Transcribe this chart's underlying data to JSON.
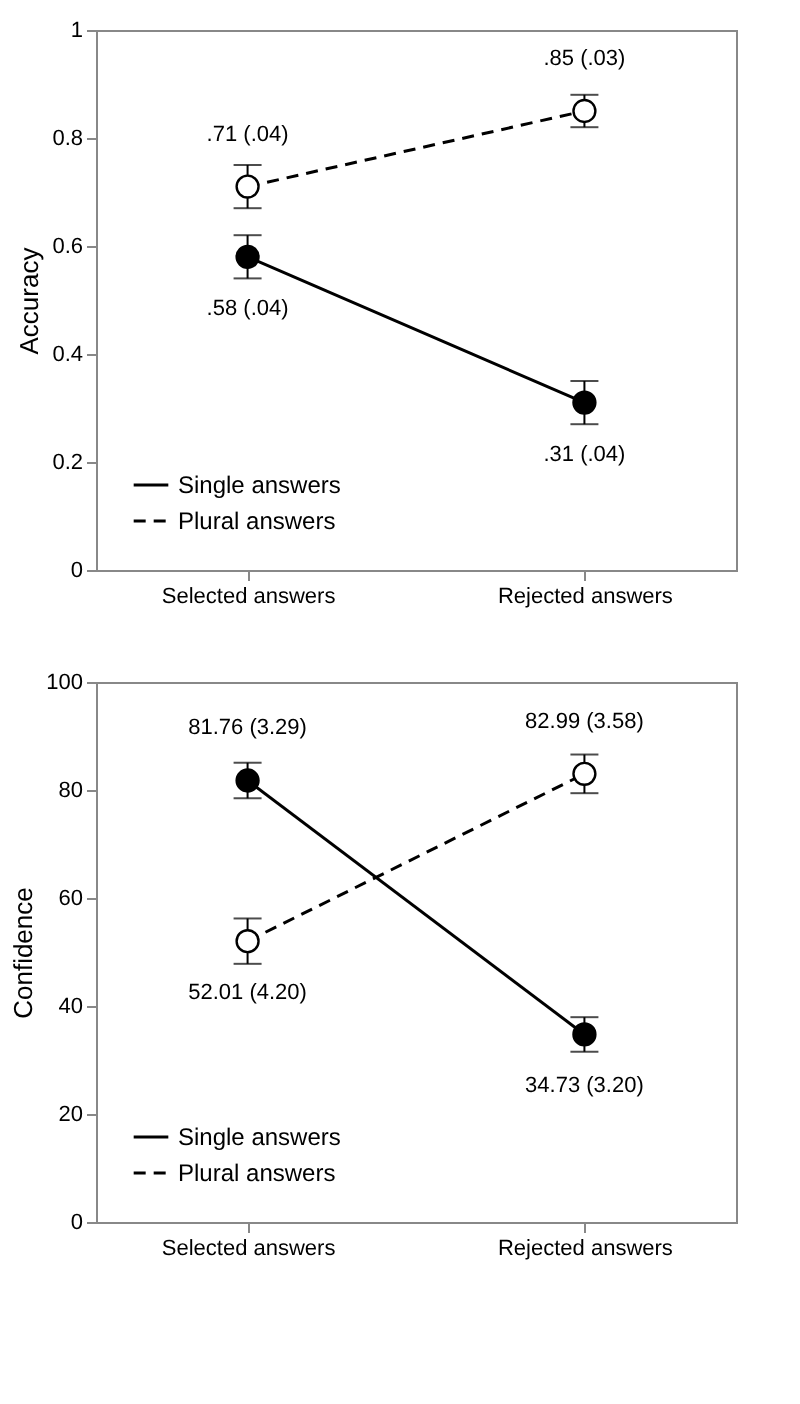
{
  "chart_data": [
    {
      "type": "line",
      "ylabel": "Accuracy",
      "categories": [
        "Selected answers",
        "Rejected answers"
      ],
      "series": [
        {
          "name": "Single answers",
          "color": "#000000",
          "line_style": "solid",
          "values": [
            0.58,
            0.31
          ],
          "errors": [
            0.04,
            0.04
          ],
          "value_labels": [
            ".58 (.04)",
            ".31 (.04)"
          ]
        },
        {
          "name": "Plural answers",
          "color": "#000000",
          "line_style": "dashed",
          "values": [
            0.71,
            0.85
          ],
          "errors": [
            0.04,
            0.03
          ],
          "value_labels": [
            ".71 (.04)",
            ".85 (.03)"
          ]
        }
      ],
      "ylim": [
        0,
        1
      ],
      "yticks": [
        0,
        0.2,
        0.4,
        0.6,
        0.8,
        1
      ],
      "grid": false,
      "legend": "bottom left",
      "marker": "circle"
    },
    {
      "type": "line",
      "ylabel": "Confidence",
      "categories": [
        "Selected answers",
        "Rejected answers"
      ],
      "series": [
        {
          "name": "Single answers",
          "color": "#000000",
          "line_style": "solid",
          "values": [
            81.76,
            34.73
          ],
          "errors": [
            3.29,
            3.2
          ],
          "value_labels": [
            "81.76 (3.29)",
            "34.73 (3.20)"
          ]
        },
        {
          "name": "Plural answers",
          "color": "#000000",
          "line_style": "dashed",
          "values": [
            52.01,
            82.99
          ],
          "errors": [
            4.2,
            3.58
          ],
          "value_labels": [
            "52.01 (4.20)",
            "82.99 (3.58)"
          ]
        }
      ],
      "ylim": [
        0,
        100
      ],
      "yticks": [
        0,
        20,
        40,
        60,
        80,
        100
      ],
      "grid": false,
      "legend": "bottom left",
      "marker": "circle"
    }
  ]
}
